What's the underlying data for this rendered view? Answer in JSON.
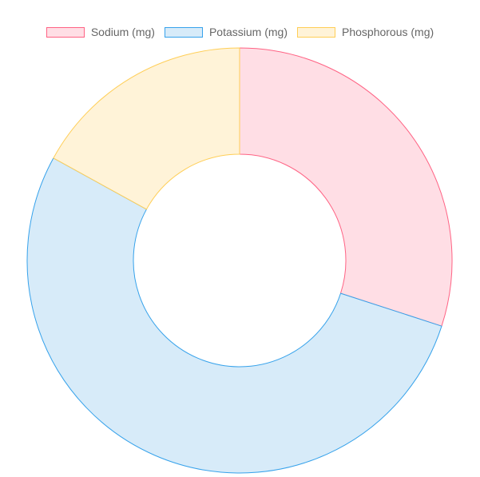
{
  "chart_data": {
    "type": "pie",
    "variant": "doughnut",
    "title": "",
    "legend_position": "top",
    "categories": [
      "Sodium (mg)",
      "Potassium (mg)",
      "Phosphorous (mg)"
    ],
    "values": [
      30,
      53,
      17
    ],
    "colors": {
      "fill": [
        "#ffdee5",
        "#d7ebf9",
        "#fff3d8"
      ],
      "border": [
        "#ff6384",
        "#36a2eb",
        "#ffce56"
      ]
    }
  }
}
